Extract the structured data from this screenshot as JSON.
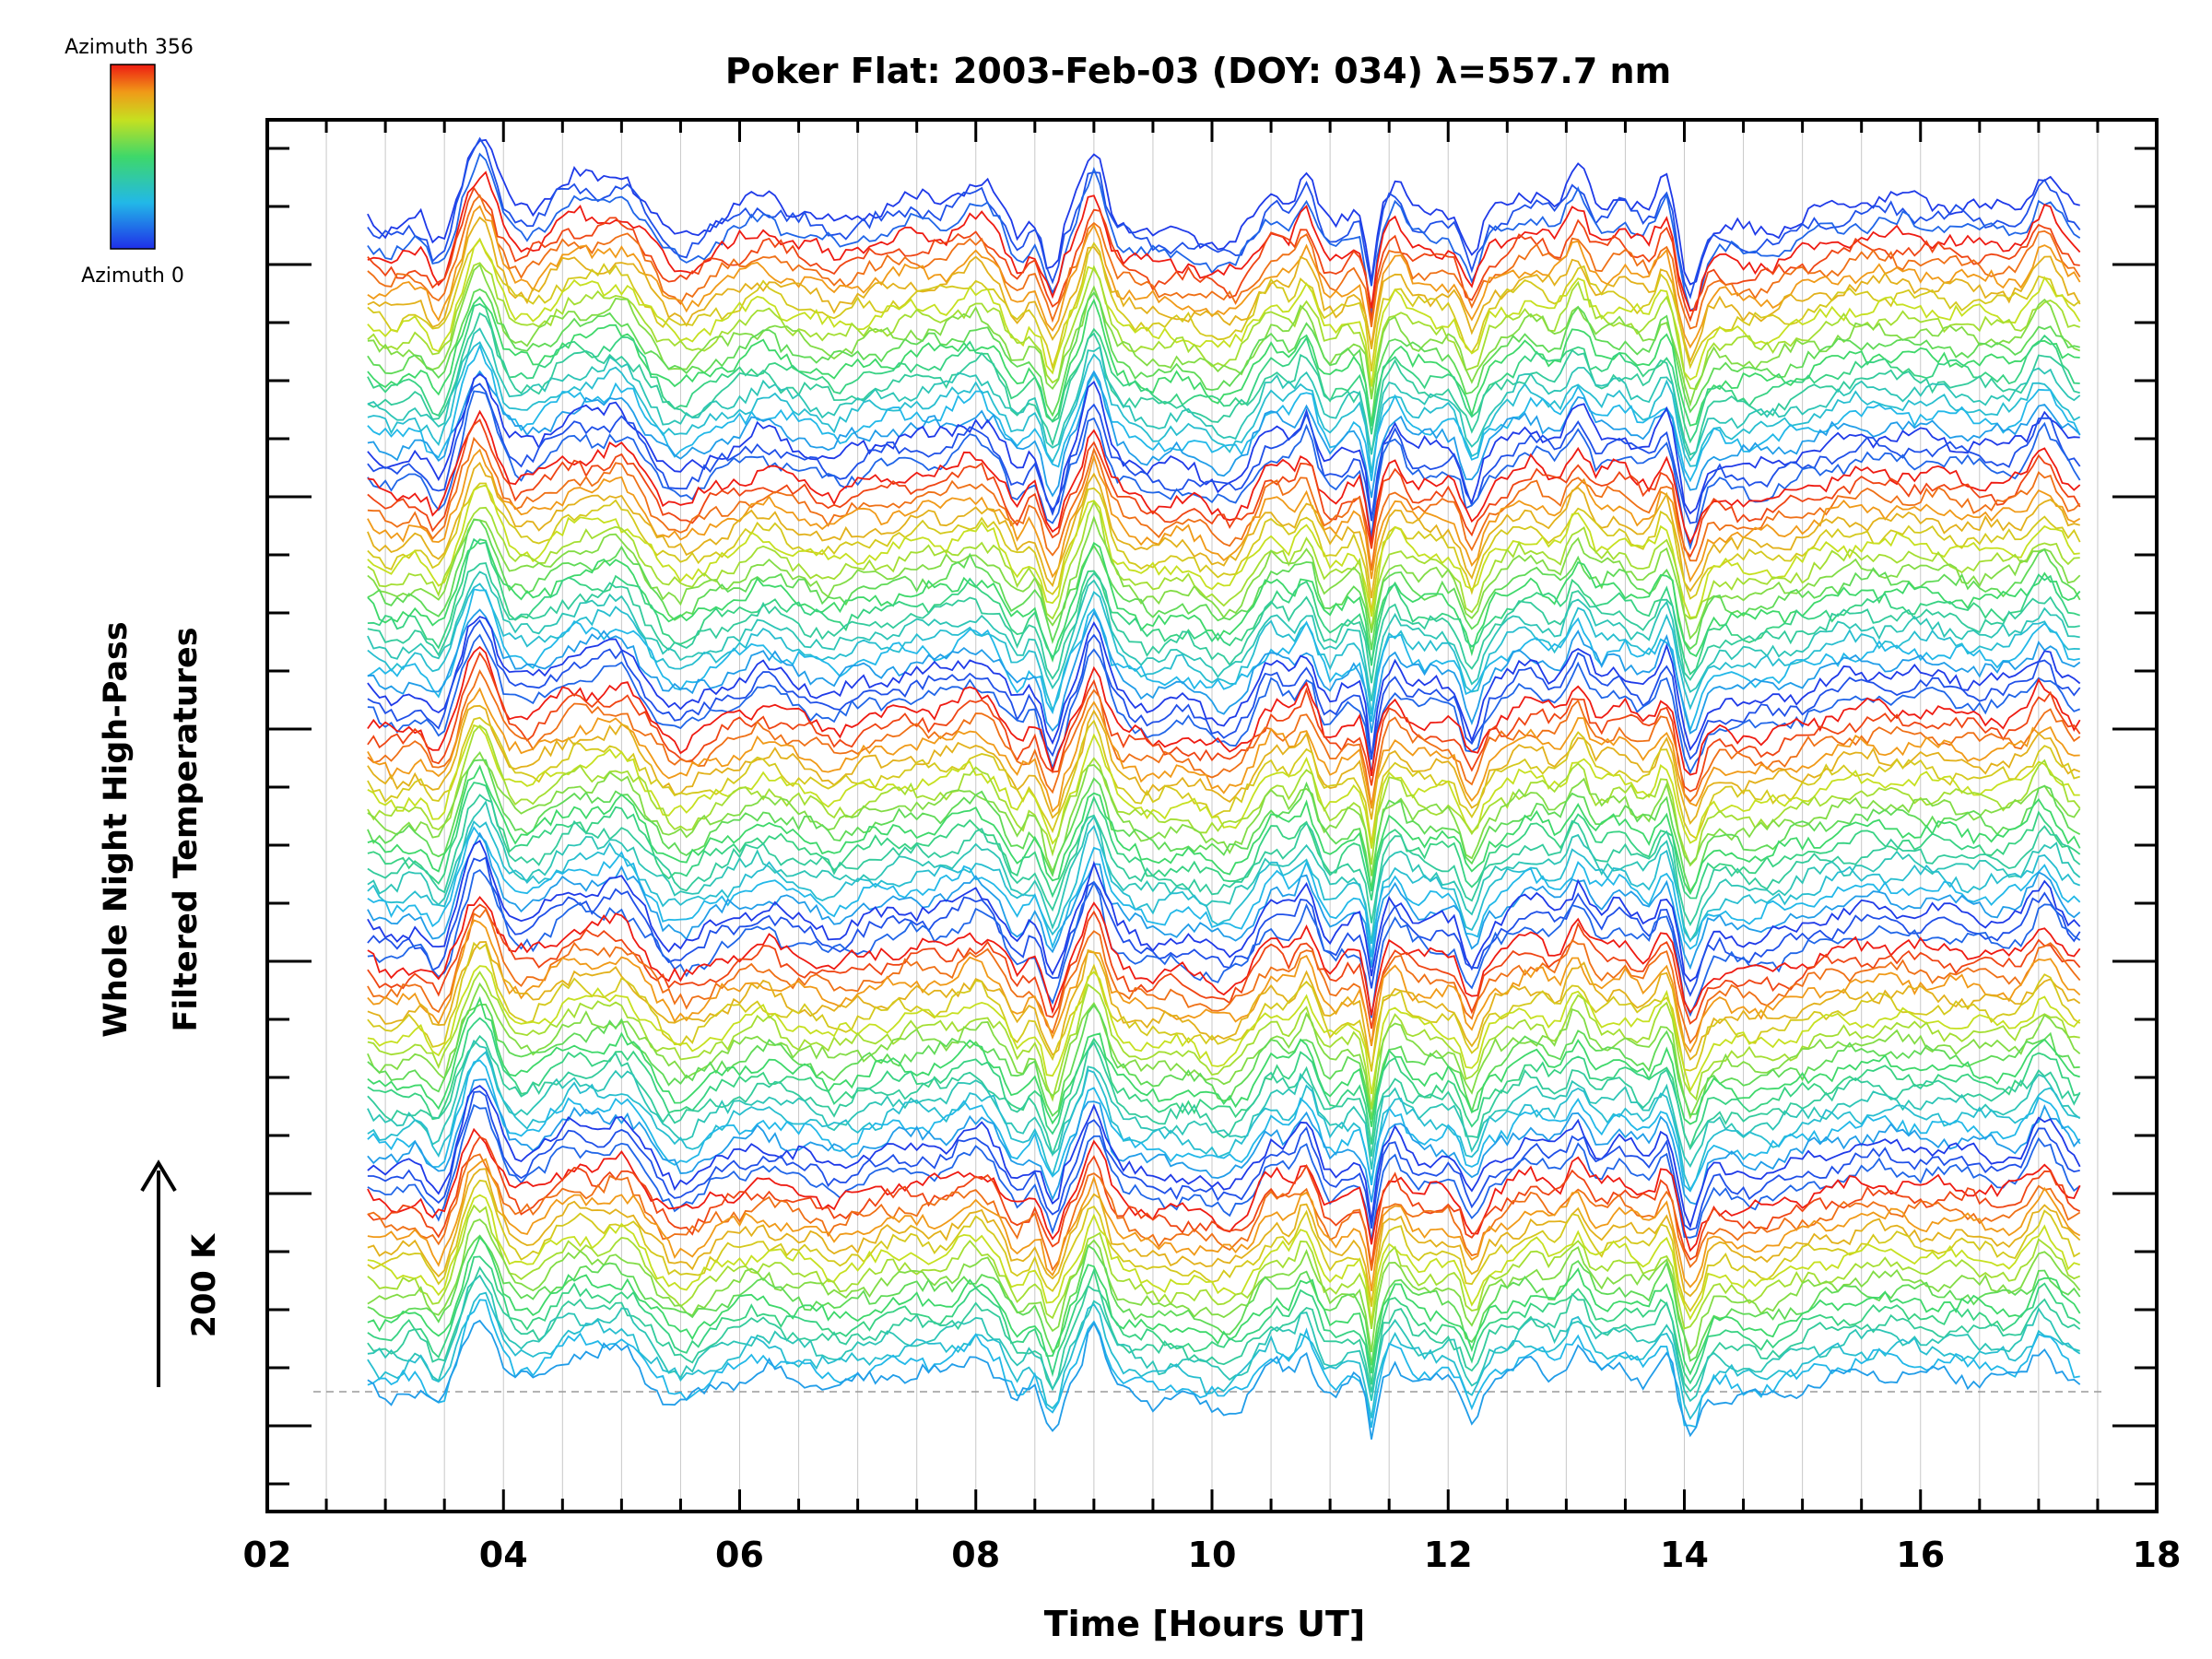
{
  "chart_data": {
    "type": "line",
    "title": "Poker Flat: 2003-Feb-03 (DOY: 034) λ=557.7 nm",
    "xlabel": "Time [Hours UT]",
    "ylabel_line1": "Whole Night High-Pass",
    "ylabel_line2": "Filtered Temperatures",
    "scale_label": "200 K",
    "x_ticks": [
      "02",
      "04",
      "06",
      "08",
      "10",
      "12",
      "14",
      "16",
      "18"
    ],
    "xlim": [
      2,
      18
    ],
    "data_x_range": [
      2.85,
      17.35
    ],
    "grid": "vertical",
    "colorbar": {
      "max_label": "Azimuth 356",
      "min_label": "Azimuth 0",
      "colormap": "rainbow"
    },
    "stacked_series_count": 100,
    "series_groups": 5,
    "series_per_group": 20,
    "colors": {
      "blue": "#1f3fe0",
      "red": "#ee1b12",
      "grid": "#c8c8c8",
      "baseline": "#9a9a9a"
    }
  }
}
